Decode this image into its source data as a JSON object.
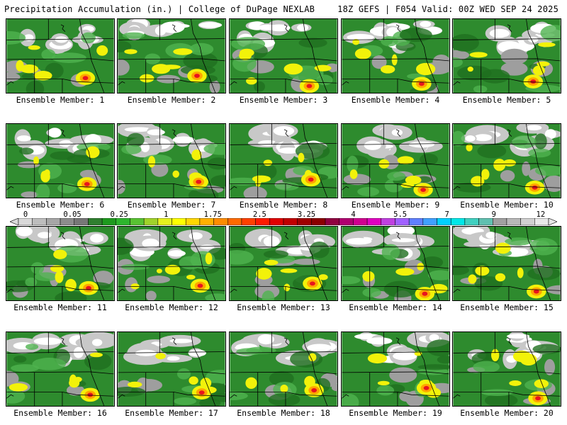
{
  "header": {
    "title_left": "Precipitation Accumulation (in.) | College of DuPage NEXLAB",
    "title_right": "18Z GEFS | F054 Valid: 00Z WED SEP 24 2025"
  },
  "panels": [
    {
      "label": "Ensemble Member: 1"
    },
    {
      "label": "Ensemble Member: 2"
    },
    {
      "label": "Ensemble Member: 3"
    },
    {
      "label": "Ensemble Member: 4"
    },
    {
      "label": "Ensemble Member: 5"
    },
    {
      "label": "Ensemble Member: 6"
    },
    {
      "label": "Ensemble Member: 7"
    },
    {
      "label": "Ensemble Member: 8"
    },
    {
      "label": "Ensemble Member: 9"
    },
    {
      "label": "Ensemble Member: 10"
    },
    {
      "label": "Ensemble Member: 11"
    },
    {
      "label": "Ensemble Member: 12"
    },
    {
      "label": "Ensemble Member: 13"
    },
    {
      "label": "Ensemble Member: 14"
    },
    {
      "label": "Ensemble Member: 15"
    },
    {
      "label": "Ensemble Member: 16"
    },
    {
      "label": "Ensemble Member: 17"
    },
    {
      "label": "Ensemble Member: 18"
    },
    {
      "label": "Ensemble Member: 19"
    },
    {
      "label": "Ensemble Member: 20"
    }
  ],
  "colorbar": {
    "tick_labels": [
      "0",
      "0.05",
      "0.25",
      "1",
      "1.75",
      "2.5",
      "3.25",
      "4",
      "5.5",
      "7",
      "9",
      "12"
    ],
    "colors": [
      "#d9d9d9",
      "#bdbdbd",
      "#a6a6a6",
      "#8c8c8c",
      "#777777",
      "#2f7f2f",
      "#1e9a1e",
      "#2db52d",
      "#58c232",
      "#a0d22a",
      "#e6f01e",
      "#ffff00",
      "#ffd700",
      "#ffb000",
      "#ff8c00",
      "#ff6a00",
      "#ff4000",
      "#ff1a00",
      "#e00000",
      "#c00000",
      "#a00000",
      "#8b0000",
      "#900040",
      "#b00070",
      "#d00090",
      "#e000c0",
      "#c040e0",
      "#a060ff",
      "#6080ff",
      "#40a0ff",
      "#00d0ff",
      "#00e8e8",
      "#40d0c0",
      "#60c0b0",
      "#a0a0a0",
      "#b8b8b8",
      "#d0d0d0",
      "#e8e8e8"
    ]
  },
  "map_colors": {
    "background": "#2e8b2e",
    "light_green": "#4fb34f",
    "dark_green": "#1f6f1f",
    "gray": "#9e9e9e",
    "light_gray": "#c8c8c8",
    "white": "#ffffff",
    "yellow": "#f2f20a",
    "orange": "#ffa500",
    "red": "#e8141e"
  }
}
